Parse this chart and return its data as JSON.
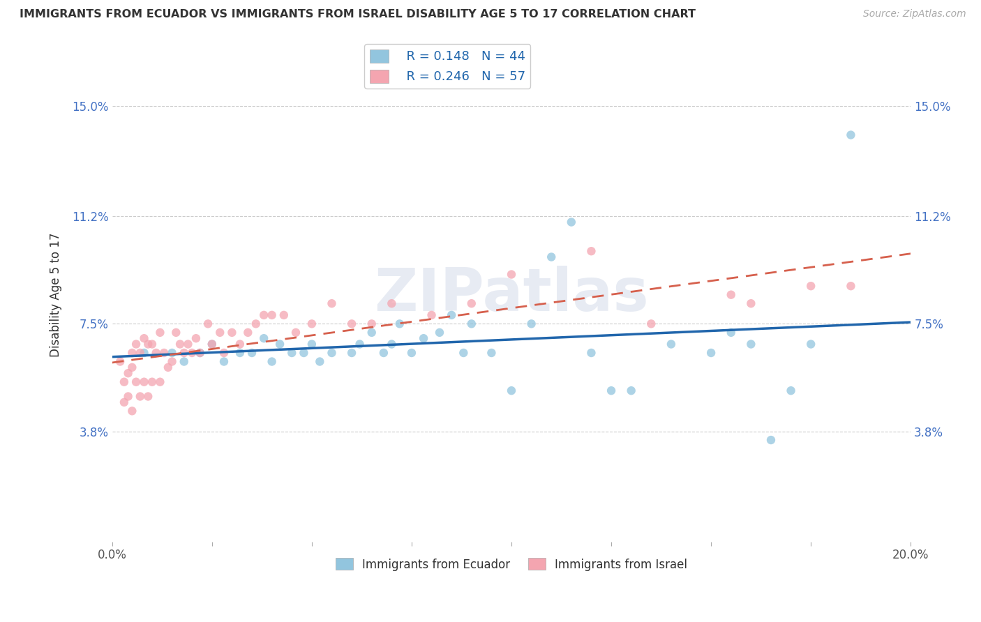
{
  "title": "IMMIGRANTS FROM ECUADOR VS IMMIGRANTS FROM ISRAEL DISABILITY AGE 5 TO 17 CORRELATION CHART",
  "source": "Source: ZipAtlas.com",
  "ylabel": "Disability Age 5 to 17",
  "xlim": [
    0.0,
    0.2
  ],
  "ylim": [
    0.0,
    0.17
  ],
  "yticks": [
    0.038,
    0.075,
    0.112,
    0.15
  ],
  "ytick_labels": [
    "3.8%",
    "7.5%",
    "11.2%",
    "15.0%"
  ],
  "xtick_positions": [
    0.0,
    0.025,
    0.05,
    0.075,
    0.1,
    0.125,
    0.15,
    0.175,
    0.2
  ],
  "xtick_labels_shown": {
    "0.0": "0.0%",
    "0.20": "20.0%"
  },
  "series1_name": "Immigrants from Ecuador",
  "series2_name": "Immigrants from Israel",
  "series1_color": "#92c5de",
  "series2_color": "#f4a5b0",
  "series1_line_color": "#2166ac",
  "series2_line_color": "#d6604d",
  "series1_R": "0.148",
  "series1_N": "44",
  "series2_R": "0.246",
  "series2_N": "57",
  "watermark": "ZIPatlas",
  "ecuador_x": [
    0.008,
    0.015,
    0.018,
    0.022,
    0.025,
    0.028,
    0.032,
    0.035,
    0.038,
    0.04,
    0.042,
    0.045,
    0.048,
    0.05,
    0.052,
    0.055,
    0.06,
    0.062,
    0.065,
    0.068,
    0.07,
    0.072,
    0.075,
    0.078,
    0.082,
    0.085,
    0.088,
    0.09,
    0.095,
    0.1,
    0.105,
    0.11,
    0.115,
    0.12,
    0.125,
    0.13,
    0.14,
    0.15,
    0.155,
    0.16,
    0.165,
    0.17,
    0.175,
    0.185
  ],
  "ecuador_y": [
    0.065,
    0.065,
    0.062,
    0.065,
    0.068,
    0.062,
    0.065,
    0.065,
    0.07,
    0.062,
    0.068,
    0.065,
    0.065,
    0.068,
    0.062,
    0.065,
    0.065,
    0.068,
    0.072,
    0.065,
    0.068,
    0.075,
    0.065,
    0.07,
    0.072,
    0.078,
    0.065,
    0.075,
    0.065,
    0.052,
    0.075,
    0.098,
    0.11,
    0.065,
    0.052,
    0.052,
    0.068,
    0.065,
    0.072,
    0.068,
    0.035,
    0.052,
    0.068,
    0.14
  ],
  "israel_x": [
    0.002,
    0.003,
    0.003,
    0.004,
    0.004,
    0.005,
    0.005,
    0.005,
    0.006,
    0.006,
    0.007,
    0.007,
    0.008,
    0.008,
    0.009,
    0.009,
    0.01,
    0.01,
    0.011,
    0.012,
    0.012,
    0.013,
    0.014,
    0.015,
    0.016,
    0.017,
    0.018,
    0.019,
    0.02,
    0.021,
    0.022,
    0.024,
    0.025,
    0.027,
    0.028,
    0.03,
    0.032,
    0.034,
    0.036,
    0.038,
    0.04,
    0.043,
    0.046,
    0.05,
    0.055,
    0.06,
    0.065,
    0.07,
    0.08,
    0.09,
    0.1,
    0.12,
    0.135,
    0.155,
    0.16,
    0.175,
    0.185
  ],
  "israel_y": [
    0.062,
    0.055,
    0.048,
    0.058,
    0.05,
    0.065,
    0.06,
    0.045,
    0.068,
    0.055,
    0.065,
    0.05,
    0.07,
    0.055,
    0.068,
    0.05,
    0.068,
    0.055,
    0.065,
    0.072,
    0.055,
    0.065,
    0.06,
    0.062,
    0.072,
    0.068,
    0.065,
    0.068,
    0.065,
    0.07,
    0.065,
    0.075,
    0.068,
    0.072,
    0.065,
    0.072,
    0.068,
    0.072,
    0.075,
    0.078,
    0.078,
    0.078,
    0.072,
    0.075,
    0.082,
    0.075,
    0.075,
    0.082,
    0.078,
    0.082,
    0.092,
    0.1,
    0.075,
    0.085,
    0.082,
    0.088,
    0.088
  ]
}
